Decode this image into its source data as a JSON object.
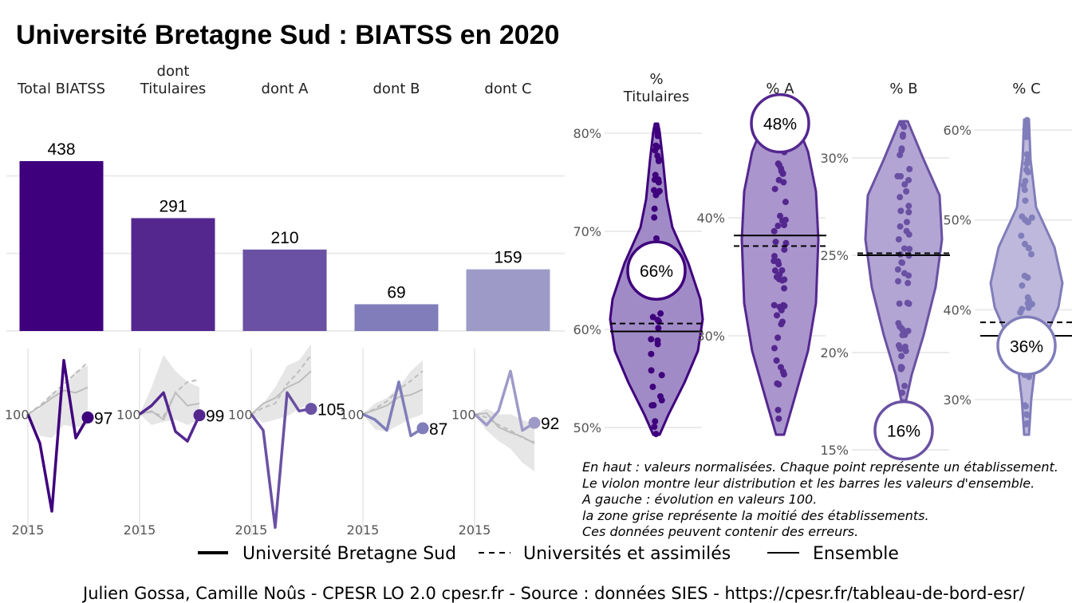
{
  "title": "Université Bretagne Sud  :  BIATSS en 2020",
  "colors": {
    "total": "#3f007d",
    "titulaires": "#54278f",
    "a": "#6a51a3",
    "b": "#807dba",
    "c": "#9e9ac8",
    "grid": "#ebebeb",
    "ribbon": "#e6e6e6",
    "ref_line": "#bdbdbd"
  },
  "chart_data": [
    {
      "type": "bar",
      "categories": [
        "Total BIATSS",
        "dont\nTitulaires",
        "dont A",
        "dont B",
        "dont C"
      ],
      "values": [
        438,
        291,
        210,
        69,
        159
      ],
      "labels": [
        "438",
        "291",
        "210",
        "69",
        "159"
      ]
    },
    {
      "type": "line",
      "panels": [
        {
          "name": "Total BIATSS",
          "x": [
            2015,
            2016,
            2017,
            2018,
            2019,
            2020
          ],
          "values": [
            100,
            73,
            10,
            150,
            78,
            97
          ],
          "end_label": "97",
          "ribbon_low": [
            100,
            80,
            78,
            90,
            88,
            90
          ],
          "ribbon_high": [
            100,
            105,
            120,
            125,
            140,
            145
          ],
          "ensemble": [
            100,
            107,
            115,
            122,
            120,
            125
          ],
          "universites": [
            100,
            108,
            118,
            128,
            138,
            148
          ]
        },
        {
          "name": "dont Titulaires",
          "x": [
            2015,
            2016,
            2017,
            2018,
            2019,
            2020
          ],
          "values": [
            100,
            108,
            120,
            84,
            75,
            99
          ],
          "end_label": "99",
          "ribbon_low": [
            100,
            90,
            93,
            95,
            90,
            95
          ],
          "ribbon_high": [
            100,
            125,
            155,
            140,
            130,
            125
          ],
          "ensemble": [
            100,
            103,
            95,
            120,
            108,
            110
          ],
          "universites": [
            100,
            102,
            98,
            120,
            130,
            132
          ]
        },
        {
          "name": "dont A",
          "x": [
            2015,
            2016,
            2017,
            2018,
            2019,
            2020
          ],
          "values": [
            100,
            85,
            -5,
            120,
            103,
            105
          ],
          "end_label": "105",
          "ribbon_low": [
            100,
            92,
            95,
            98,
            105,
            110
          ],
          "ribbon_high": [
            100,
            110,
            125,
            145,
            150,
            165
          ],
          "ensemble": [
            100,
            110,
            115,
            125,
            130,
            140
          ],
          "universites": [
            100,
            106,
            110,
            128,
            140,
            155
          ]
        },
        {
          "name": "dont B",
          "x": [
            2015,
            2016,
            2017,
            2018,
            2019,
            2020
          ],
          "values": [
            100,
            95,
            85,
            130,
            80,
            87
          ],
          "end_label": "87",
          "ribbon_low": [
            100,
            86,
            84,
            90,
            96,
            100
          ],
          "ribbon_high": [
            100,
            110,
            115,
            125,
            140,
            150
          ],
          "ensemble": [
            100,
            104,
            108,
            116,
            118,
            123
          ],
          "universites": [
            100,
            105,
            112,
            123,
            131,
            140
          ]
        },
        {
          "name": "dont C",
          "x": [
            2015,
            2016,
            2017,
            2018,
            2019,
            2020
          ],
          "values": [
            100,
            90,
            103,
            140,
            85,
            92
          ],
          "end_label": "92",
          "ribbon_low": [
            100,
            85,
            75,
            68,
            55,
            47
          ],
          "ribbon_high": [
            100,
            105,
            100,
            100,
            95,
            90
          ],
          "ensemble": [
            100,
            101,
            88,
            83,
            79,
            73
          ],
          "universites": [
            100,
            97,
            90,
            85,
            78,
            74
          ]
        }
      ],
      "x_tick_label": "2015",
      "y_ref_label": "100"
    },
    {
      "type": "violin",
      "panels": [
        {
          "name": "%\nTitulaires",
          "ticks": [
            "80%",
            "70%",
            "60%",
            "50%"
          ],
          "tick_values": [
            80,
            70,
            60,
            50
          ],
          "ylim": [
            48,
            82
          ],
          "value": 66,
          "value_label": "66%",
          "ensemble": 59.8,
          "universites": 60.6
        },
        {
          "name": "% A",
          "ticks": [
            "40%",
            "30%"
          ],
          "tick_values": [
            40,
            30
          ],
          "ylim": [
            24,
            51
          ],
          "value": 48,
          "value_label": "48%",
          "ensemble": 38.5,
          "universites": 37.6
        },
        {
          "name": "% B",
          "ticks": [
            "30%",
            "25%",
            "20%",
            "15%"
          ],
          "tick_values": [
            30,
            25,
            20,
            15
          ],
          "ylim": [
            15,
            33
          ],
          "value": 16,
          "value_label": "16%",
          "ensemble": 25.0,
          "universites": 25.1
        },
        {
          "name": "% C",
          "ticks": [
            "60%",
            "50%",
            "40%",
            "30%"
          ],
          "tick_values": [
            60,
            50,
            40,
            30
          ],
          "ylim": [
            25,
            61
          ],
          "value": 36,
          "value_label": "36%",
          "ensemble": 37.1,
          "universites": 38.6
        }
      ]
    }
  ],
  "notes": [
    "En haut : valeurs normalisées. Chaque point représente un établissement.",
    "Le violon montre leur distribution et les barres les valeurs d'ensemble.",
    "A gauche : évolution en valeurs 100.",
    "la zone grise représente la moitié des établissements.",
    "Ces données peuvent contenir des erreurs."
  ],
  "legend": [
    "Université Bretagne Sud",
    "Universités et assimilés",
    "Ensemble"
  ],
  "caption": "Julien Gossa, Camille Noûs - CPESR LO 2.0 cpesr.fr - Source : données SIES - https://cpesr.fr/tableau-de-bord-esr/"
}
